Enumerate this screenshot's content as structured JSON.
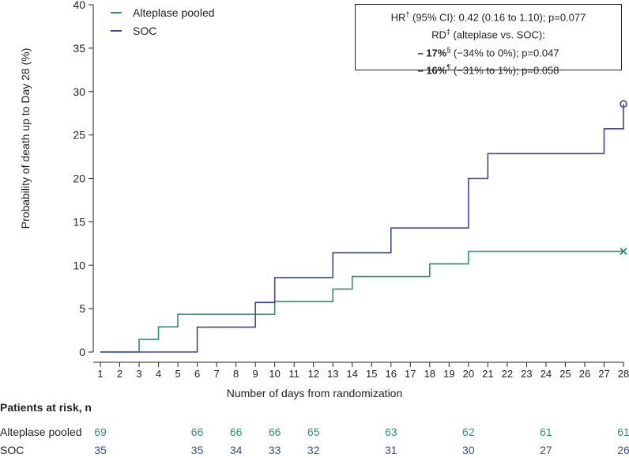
{
  "chart_data": {
    "type": "line",
    "ylabel": "Probability of death up to Day 28 (%)",
    "xlabel": "Number of days from randomization",
    "xlim": [
      1,
      28
    ],
    "ylim": [
      0,
      40
    ],
    "x_ticks": [
      1,
      2,
      3,
      4,
      5,
      6,
      7,
      8,
      9,
      10,
      11,
      12,
      13,
      14,
      15,
      16,
      17,
      18,
      19,
      20,
      21,
      22,
      23,
      24,
      25,
      26,
      27,
      28
    ],
    "y_ticks": [
      0,
      5,
      10,
      15,
      20,
      25,
      30,
      35,
      40
    ],
    "series": [
      {
        "name": "Alteplase pooled",
        "color": "#2a9474",
        "end_marker": "x",
        "x": [
          1,
          3,
          4,
          5,
          9,
          10,
          13,
          14,
          18,
          20,
          28
        ],
        "y": [
          0,
          1.45,
          2.9,
          4.35,
          4.35,
          5.8,
          7.25,
          8.7,
          10.15,
          11.6,
          11.6
        ]
      },
      {
        "name": "SOC",
        "color": "#3f479a",
        "end_marker": "o",
        "x": [
          1,
          6,
          9,
          10,
          13,
          16,
          20,
          21,
          27,
          28
        ],
        "y": [
          0,
          2.86,
          5.71,
          8.57,
          11.43,
          14.29,
          20.0,
          22.86,
          25.71,
          28.57
        ]
      }
    ],
    "annotation": {
      "hr_prefix": "HR",
      "hr_mark": "†",
      "hr_text": " (95% CI): 0.42 (0.16 to 1.10); p=0.077",
      "rd_prefix": "RD",
      "rd_mark": "‡",
      "rd_text": " (alteplase vs. SOC):",
      "rd1_bold": "– 17%",
      "rd1_mark": "§",
      "rd1_text": " (−34% to 0%); p=0.047",
      "rd2_bold": "– 16%",
      "rd2_mark": "¶",
      "rd2_text": " (−31% to 1%); p=0.058"
    }
  },
  "risk_table": {
    "title": "Patients at risk, n",
    "days": [
      1,
      6,
      8,
      10,
      12,
      16,
      20,
      24,
      28
    ],
    "rows": [
      {
        "label": "Alteplase pooled",
        "color": "#2a9474",
        "values": [
          "69",
          "66",
          "66",
          "66",
          "65",
          "63",
          "62",
          "61",
          "61"
        ]
      },
      {
        "label": "SOC",
        "color": "#3f479a",
        "values": [
          "35",
          "35",
          "34",
          "33",
          "32",
          "31",
          "30",
          "27",
          "26"
        ]
      }
    ]
  }
}
